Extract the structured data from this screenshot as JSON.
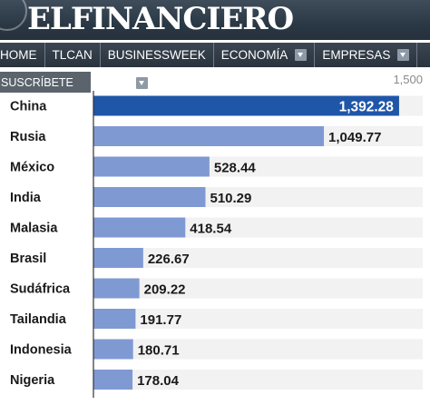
{
  "site": {
    "logo": "ELFINANCIERO",
    "nav": [
      {
        "label": "HOME",
        "dropdown": false
      },
      {
        "label": "TLCAN",
        "dropdown": false
      },
      {
        "label": "BUSINESSWEEK",
        "dropdown": false
      },
      {
        "label": "ECONOMÍA",
        "dropdown": true
      },
      {
        "label": "EMPRESAS",
        "dropdown": true
      }
    ],
    "subscribe_label": "SUSCRÍBETE"
  },
  "colors": {
    "bar": "#7f9ad3",
    "bar_highlight": "#1f56a8",
    "track": "#f2f2f2"
  },
  "chart_data": {
    "type": "bar",
    "orientation": "horizontal",
    "categories": [
      "China",
      "Rusia",
      "México",
      "India",
      "Malasia",
      "Brasil",
      "Sudáfrica",
      "Tailandia",
      "Indonesia",
      "Nigeria"
    ],
    "values": [
      1392.28,
      1049.77,
      528.44,
      510.29,
      418.54,
      226.67,
      209.22,
      191.77,
      180.71,
      178.04
    ],
    "value_labels": [
      "1,392.28",
      "1,049.77",
      "528.44",
      "510.29",
      "418.54",
      "226.67",
      "209.22",
      "191.77",
      "180.71",
      "178.04"
    ],
    "highlight_index": 0,
    "xlim": [
      0,
      1500
    ],
    "x_tick_labels": [
      "1,500"
    ],
    "title": "",
    "xlabel": "",
    "ylabel": ""
  }
}
